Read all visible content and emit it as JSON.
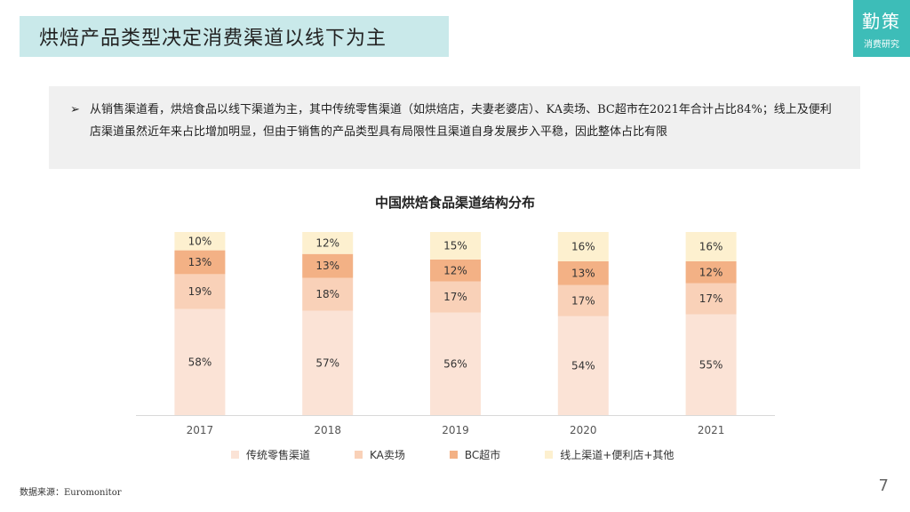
{
  "header": {
    "title": "烘焙产品类型决定消费渠道以线下为主"
  },
  "brand": {
    "name": "勤策",
    "subtitle": "消费研究"
  },
  "summary": {
    "bullet": "➢",
    "text": "从销售渠道看，烘焙食品以线下渠道为主，其中传统零售渠道（如烘焙店，夫妻老婆店）、KA卖场、BC超市在2021年合计占比84%；线上及便利店渠道虽然近年来占比增加明显，但由于销售的产品类型具有局限性且渠道自身发展步入平稳，因此整体占比有限"
  },
  "chart_data": {
    "type": "bar",
    "stacked": true,
    "title": "中国烘焙食品渠道结构分布",
    "categories": [
      "2017",
      "2018",
      "2019",
      "2020",
      "2021"
    ],
    "series": [
      {
        "name": "传统零售渠道",
        "color": "#fbe3d6",
        "values": [
          58,
          57,
          56,
          54,
          55
        ]
      },
      {
        "name": "KA卖场",
        "color": "#f9d1b8",
        "values": [
          19,
          18,
          17,
          17,
          17
        ]
      },
      {
        "name": "BC超市",
        "color": "#f3b185",
        "values": [
          13,
          13,
          12,
          13,
          12
        ]
      },
      {
        "name": "线上渠道+便利店+其他",
        "color": "#fdf0cf",
        "values": [
          10,
          12,
          15,
          16,
          16
        ]
      }
    ],
    "value_suffix": "%",
    "legend_position": "bottom",
    "grid": false
  },
  "footer": {
    "source": "数据来源：Euromonitor",
    "page": "7"
  }
}
